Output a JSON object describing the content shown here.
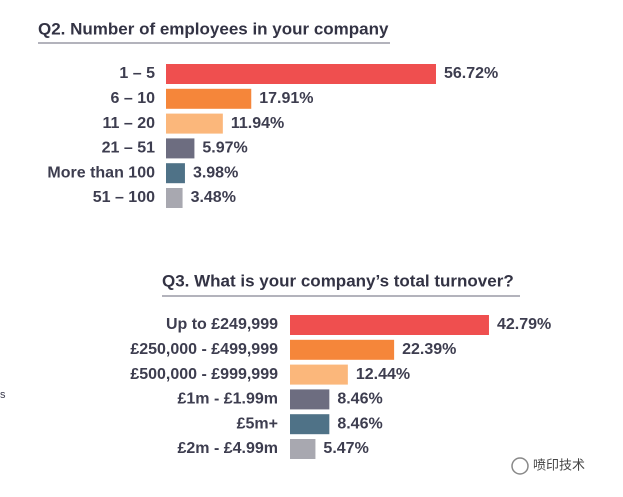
{
  "chart_data": [
    {
      "type": "bar",
      "orientation": "horizontal",
      "title": "Q2. Number of employees in your company",
      "categories": [
        "1 – 5",
        "6 – 10",
        "11 – 20",
        "21 – 51",
        "More than 100",
        "51 – 100"
      ],
      "values": [
        56.72,
        17.91,
        11.94,
        5.97,
        3.98,
        3.48
      ],
      "value_labels": [
        "56.72%",
        "17.91%",
        "11.94%",
        "5.97%",
        "3.98%",
        "3.48%"
      ],
      "colors": [
        "#ef4f4f",
        "#f5863a",
        "#fbb77b",
        "#6d6d80",
        "#4f7287",
        "#a8a8b0"
      ]
    },
    {
      "type": "bar",
      "orientation": "horizontal",
      "title": "Q3. What is your company’s total turnover?",
      "categories": [
        "Up to £249,999",
        "£250,000 - £499,999",
        "£500,000 - £999,999",
        "£1m - £1.99m",
        "£5m+",
        "£2m - £4.99m"
      ],
      "values": [
        42.79,
        22.39,
        12.44,
        8.46,
        8.46,
        5.47
      ],
      "value_labels": [
        "42.79%",
        "22.39%",
        "12.44%",
        "8.46%",
        "8.46%",
        "5.47%"
      ],
      "colors": [
        "#ef4f4f",
        "#f5863a",
        "#fbb77b",
        "#6d6d80",
        "#4f7287",
        "#a8a8b0"
      ]
    }
  ],
  "edge_text": "s",
  "watermark": "喷印技术"
}
